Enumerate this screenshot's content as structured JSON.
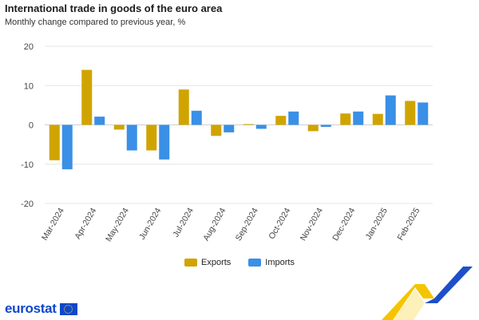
{
  "header": {
    "title": "International trade in goods of the euro area",
    "subtitle": "Monthly change compared to previous year, %"
  },
  "legend": {
    "exports_label": "Exports",
    "imports_label": "Imports"
  },
  "brand": {
    "logo_text": "eurostat"
  },
  "colors": {
    "exports": "#d0a400",
    "imports": "#3a8fe6",
    "grid": "#e6e6e6",
    "brand": "#0e47cb"
  },
  "chart_data": {
    "type": "bar",
    "title": "International trade in goods of the euro area",
    "subtitle": "Monthly change compared to previous year, %",
    "categories": [
      "Mar-2024",
      "Apr-2024",
      "May-2024",
      "Jun-2024",
      "Jul-2024",
      "Aug-2024",
      "Sep-2024",
      "Oct-2024",
      "Nov-2024",
      "Dec-2024",
      "Jan-2025",
      "Feb-2025"
    ],
    "series": [
      {
        "name": "Exports",
        "values": [
          -9.0,
          14.0,
          -1.2,
          -6.5,
          9.0,
          -2.8,
          0.2,
          2.3,
          -1.6,
          2.9,
          2.8,
          6.1
        ]
      },
      {
        "name": "Imports",
        "values": [
          -11.3,
          2.1,
          -6.5,
          -8.8,
          3.6,
          -1.9,
          -1.0,
          3.4,
          -0.5,
          3.4,
          7.5,
          5.7
        ]
      }
    ],
    "ylim": [
      -20,
      20
    ],
    "yticks": [
      -20,
      -10,
      0,
      10,
      20
    ],
    "grid": true,
    "legend_position": "bottom"
  }
}
